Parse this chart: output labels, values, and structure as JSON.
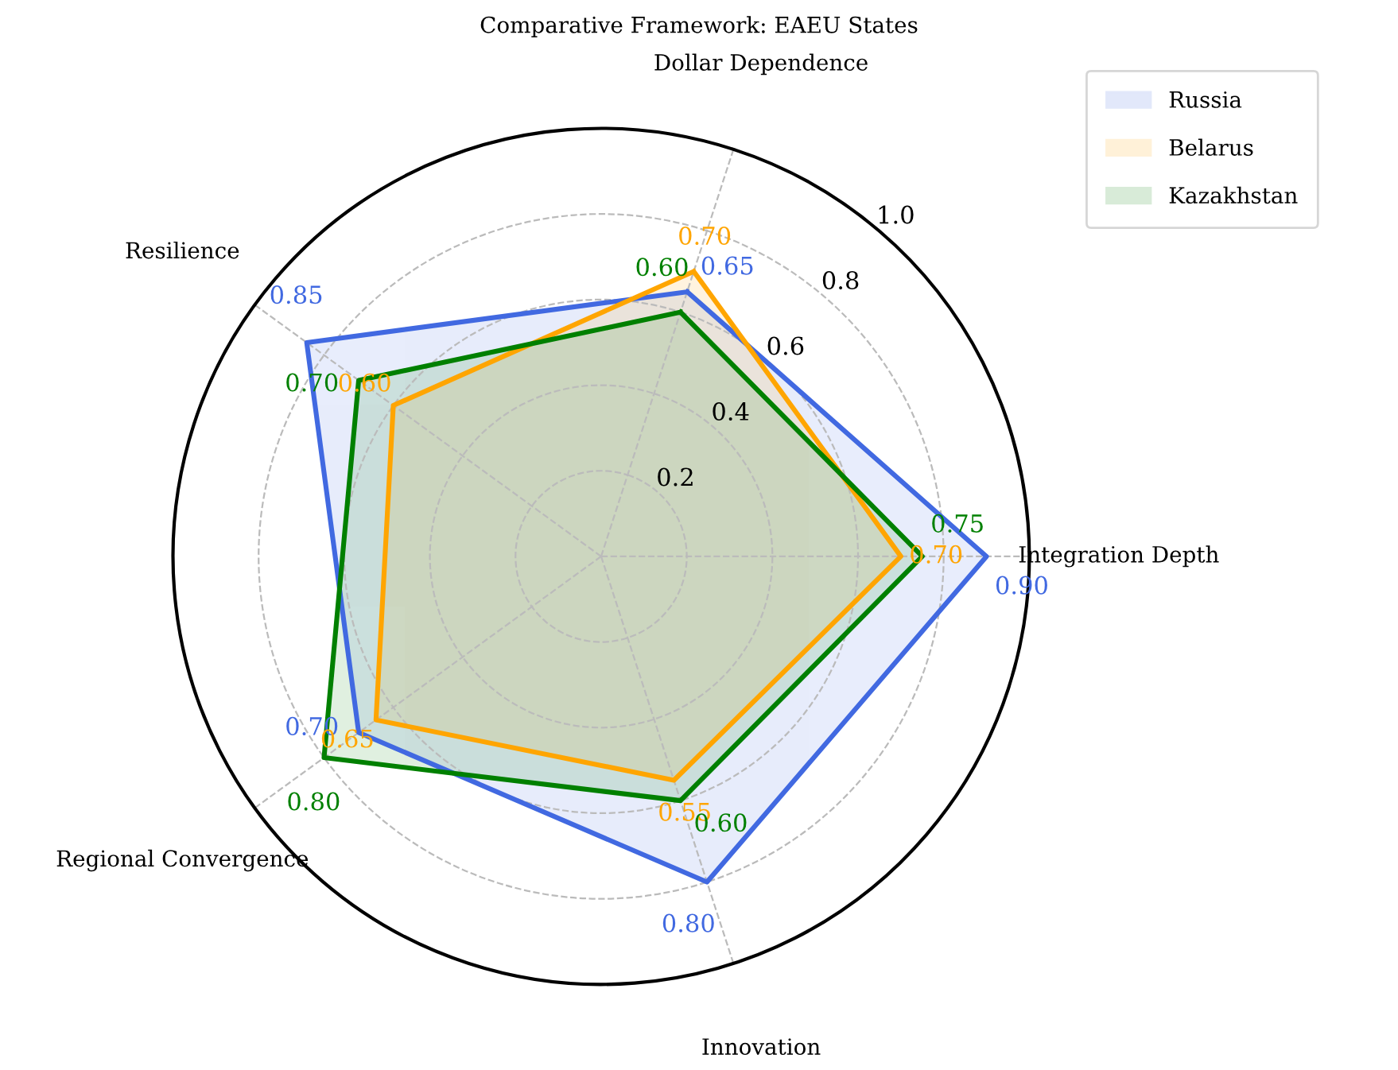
{
  "chart_data": {
    "type": "radar",
    "title": "Comparative Framework: EAEU States",
    "categories": [
      "Dollar Dependence",
      "Integration Depth",
      "Innovation",
      "Regional Convergence",
      "Resilience"
    ],
    "series": [
      {
        "name": "Russia",
        "color": "#4169e1",
        "values": [
          0.65,
          0.9,
          0.8,
          0.7,
          0.85
        ],
        "value_labels": [
          "0.65",
          "0.90",
          "0.80",
          "0.70",
          "0.85"
        ]
      },
      {
        "name": "Belarus",
        "color": "#ffa500",
        "values": [
          0.7,
          0.7,
          0.55,
          0.65,
          0.6
        ],
        "value_labels": [
          "0.70",
          "0.70",
          "0.55",
          "0.65",
          "0.60"
        ]
      },
      {
        "name": "Kazakhstan",
        "color": "#008000",
        "values": [
          0.6,
          0.75,
          0.6,
          0.8,
          0.7
        ],
        "value_labels": [
          "0.60",
          "0.75",
          "0.60",
          "0.80",
          "0.70"
        ]
      }
    ],
    "ylim": [
      0,
      1.0
    ],
    "yticks": [
      0.2,
      0.4,
      0.6,
      0.8,
      {
        "value": 1.0,
        "label": "1.0"
      }
    ],
    "grid": true,
    "legend": "top right",
    "line_style": "solid",
    "marker": "none"
  }
}
